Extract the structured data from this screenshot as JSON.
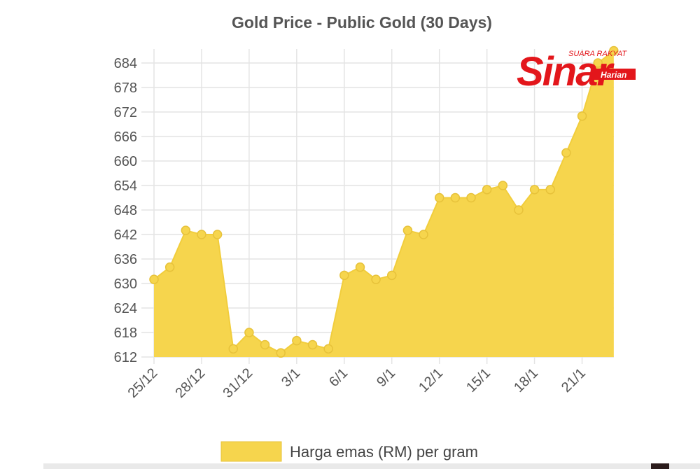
{
  "chart_data": {
    "type": "area",
    "title": "Gold Price - Public Gold (30 Days)",
    "xlabel": "",
    "ylabel": "",
    "x_tick_labels": [
      "25/12",
      "28/12",
      "31/12",
      "3/1",
      "6/1",
      "9/1",
      "12/1",
      "15/1",
      "18/1",
      "21/1"
    ],
    "y_tick_labels": [
      "612",
      "618",
      "624",
      "630",
      "636",
      "642",
      "648",
      "654",
      "660",
      "666",
      "672",
      "678",
      "684"
    ],
    "ylim": [
      612,
      687
    ],
    "grid": true,
    "legend": "bottom",
    "series": [
      {
        "name": "Harga emas (RM) per gram",
        "color": "#f6d54d",
        "values": [
          631,
          634,
          643,
          642,
          642,
          614,
          618,
          615,
          613,
          616,
          615,
          614,
          632,
          634,
          631,
          632,
          643,
          642,
          651,
          651,
          651,
          653,
          654,
          648,
          653,
          653,
          662,
          671,
          684,
          687
        ]
      }
    ]
  },
  "legend": {
    "label": "Harga emas (RM) per gram",
    "color": "#f6d54d"
  },
  "watermark": {
    "top": "SUARA RAKYAT",
    "main": "Sinar",
    "sub": "Harian",
    "color": "#e3161b"
  }
}
